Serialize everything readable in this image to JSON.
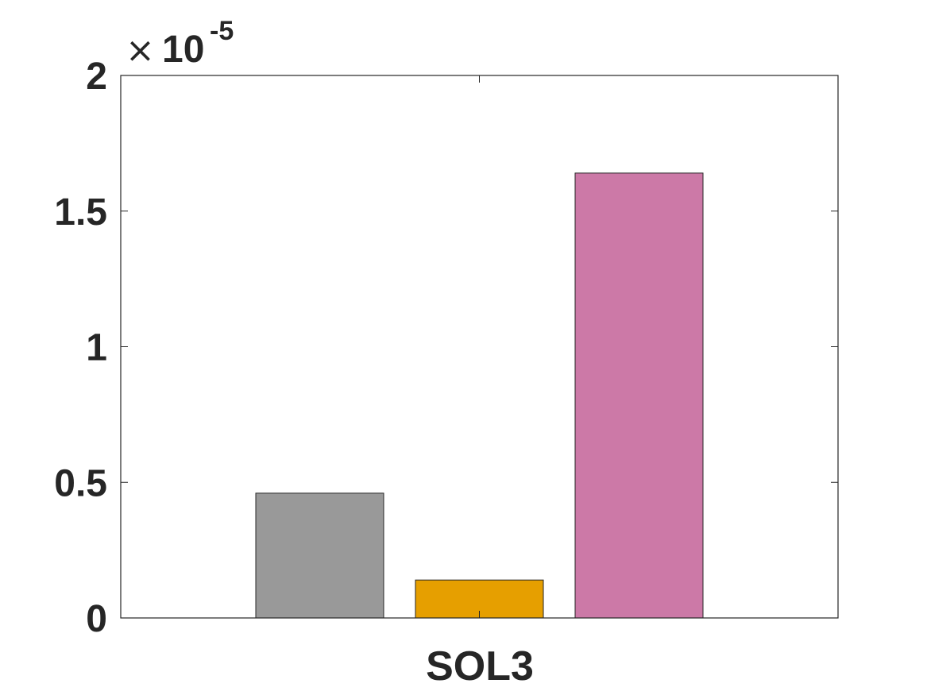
{
  "chart_data": {
    "type": "bar",
    "categories": [
      "SOL3"
    ],
    "series": [
      {
        "values": [
          0.46
        ],
        "color": "#999999"
      },
      {
        "values": [
          0.14
        ],
        "color": "#E69F00"
      },
      {
        "values": [
          1.64
        ],
        "color": "#CC79A7"
      }
    ],
    "y_ticks": [
      "0",
      "0.5",
      "1",
      "1.5",
      "2"
    ],
    "y_tick_values": [
      0,
      0.5,
      1,
      1.5,
      2
    ],
    "ylim": [
      0,
      2
    ],
    "y_multiplier": {
      "times": "×",
      "base": "10",
      "exponent": "-5"
    },
    "grid": false,
    "xlabel": "",
    "ylabel": "",
    "title": ""
  }
}
